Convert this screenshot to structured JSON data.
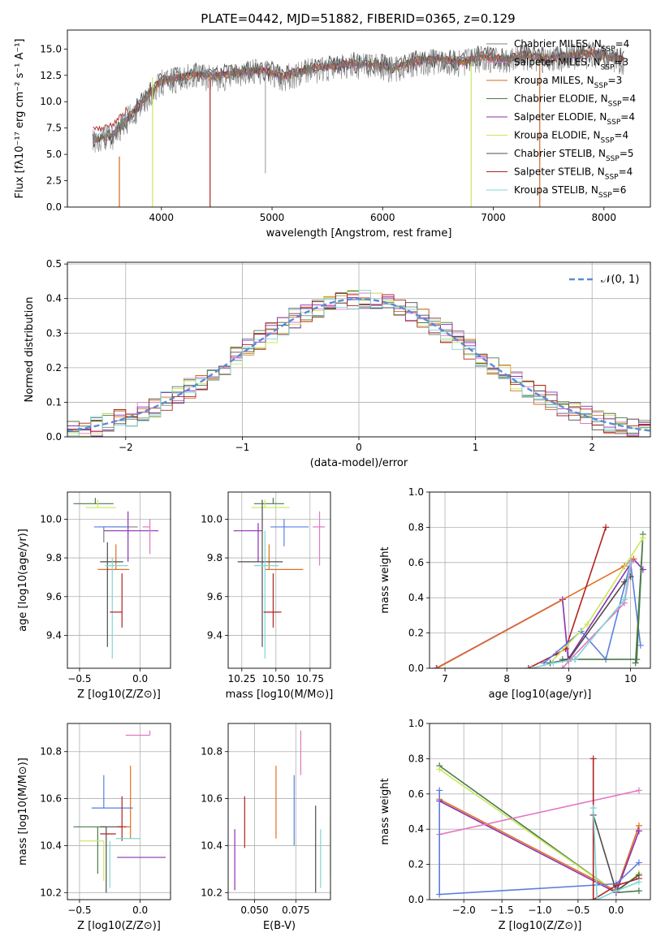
{
  "page_title": "PLATE=0442, MJD=51882, FIBERID=0365, z=0.129",
  "colors": {
    "chabrier_miles": "#808080",
    "salpeter_miles": "#e377c2",
    "kroupa_miles": "#d2691e",
    "chabrier_elodie": "#4a7a4a",
    "salpeter_elodie": "#8b2fb5",
    "kroupa_elodie": "#c8e85a",
    "chabrier_stelib": "#4d4d4d",
    "salpeter_stelib": "#b22222",
    "kroupa_stelib": "#7fd6d6",
    "normal_curve": "#5b8bd6",
    "extra_blue": "#5b7fe0",
    "extra_orange": "#e07020"
  },
  "chart_data": [
    {
      "type": "line",
      "title": "PLATE=0442, MJD=51882, FIBERID=0365, z=0.129",
      "xlabel": "wavelength [Angstrom, rest frame]",
      "ylabel": "Flux [fλ10⁻¹⁷ erg cm⁻² s⁻¹ A⁻¹]",
      "xlim": [
        3150,
        8420
      ],
      "ylim": [
        0,
        16.8
      ],
      "xticks": [
        4000,
        5000,
        6000,
        7000,
        8000
      ],
      "yticks": [
        0.0,
        2.5,
        5.0,
        7.5,
        10.0,
        12.5,
        15.0
      ],
      "legend_position": "top-right",
      "series": [
        {
          "name": "Chabrier MILES, N_SSP=4"
        },
        {
          "name": "Salpeter MILES, N_SSP=3"
        },
        {
          "name": "Kroupa MILES, N_SSP=3"
        },
        {
          "name": "Chabrier ELODIE, N_SSP=4"
        },
        {
          "name": "Salpeter ELODIE, N_SSP=4"
        },
        {
          "name": "Kroupa ELODIE, N_SSP=4"
        },
        {
          "name": "Chabrier STELIB, N_SSP=5"
        },
        {
          "name": "Salpeter STELIB, N_SSP=4"
        },
        {
          "name": "Kroupa STELIB, N_SSP=6"
        }
      ],
      "spectrum_shape": {
        "x": [
          3400,
          3550,
          3700,
          3850,
          4000,
          4150,
          4300,
          4500,
          4700,
          4900,
          5100,
          5300,
          5500,
          5700,
          5900,
          6100,
          6300,
          6500,
          6700,
          6900,
          7100,
          7300,
          7500,
          7700,
          7900,
          8100,
          8180
        ],
        "y": [
          6.5,
          6.8,
          8.5,
          10.2,
          12.0,
          12.3,
          12.6,
          12.4,
          12.8,
          13.0,
          12.4,
          13.0,
          13.3,
          13.6,
          13.6,
          13.2,
          13.8,
          14.0,
          13.8,
          14.3,
          14.0,
          14.4,
          14.1,
          14.4,
          14.6,
          14.2,
          14.0
        ]
      },
      "dropouts": [
        {
          "series": 2,
          "x": 3620,
          "from": 4.8
        },
        {
          "series": 5,
          "x": 3920,
          "from": 12.3
        },
        {
          "series": 7,
          "x": 4440,
          "from": 12.0
        },
        {
          "series": 5,
          "x": 6800,
          "from": 13.8
        },
        {
          "series": 2,
          "x": 7420,
          "from": 13.8
        }
      ]
    },
    {
      "type": "bar",
      "xlabel": "(data-model)/error",
      "ylabel": "Normed distribution",
      "xlim": [
        -2.5,
        2.5
      ],
      "ylim": [
        0,
        0.505
      ],
      "xticks": [
        -2,
        -1,
        0,
        1,
        2
      ],
      "yticks": [
        0.0,
        0.1,
        0.2,
        0.3,
        0.4,
        0.5
      ],
      "legend_position": "top-right",
      "reference_curve": {
        "name": "𝒩(0, 1)",
        "mean": 0,
        "sd": 1
      },
      "bin_width": 0.1
    },
    {
      "type": "scatter",
      "xlabel": "Z [log10(Z/Z⊙)]",
      "ylabel": "age  [log10(age/yr)]",
      "xlim": [
        -0.6,
        0.25
      ],
      "ylim": [
        9.23,
        10.14
      ],
      "xticks": [
        -0.5,
        0.0
      ],
      "yticks": [
        9.4,
        9.6,
        9.8,
        10.0
      ],
      "errorbars": [
        {
          "x": -0.37,
          "y": 10.08,
          "xerr": [
            0.18,
            0.15
          ],
          "yerr": [
            0.0,
            0.03
          ],
          "series": 3
        },
        {
          "x": -0.35,
          "y": 10.06,
          "xerr": [
            0.1,
            0.15
          ],
          "yerr": [
            0.0,
            0.04
          ],
          "series": 5
        },
        {
          "x": -0.3,
          "y": 9.96,
          "xerr": [
            0.05,
            0.28
          ],
          "yerr": [
            0.08,
            0.0
          ],
          "series": 0
        },
        {
          "x": -0.28,
          "y": 9.96,
          "xerr": [
            0.1,
            0.17
          ],
          "yerr": [
            0.0,
            0.0
          ],
          "series": 10
        },
        {
          "x": -0.1,
          "y": 9.94,
          "xerr": [
            0.2,
            0.25
          ],
          "yerr": [
            0.16,
            0.1
          ],
          "series": 4
        },
        {
          "x": 0.08,
          "y": 9.96,
          "xerr": [
            0.06,
            0.0
          ],
          "yerr": [
            0.14,
            0.04
          ],
          "series": 1
        },
        {
          "x": -0.2,
          "y": 9.74,
          "xerr": [
            0.15,
            0.11
          ],
          "yerr": [
            0.0,
            0.13
          ],
          "series": 11
        },
        {
          "x": -0.27,
          "y": 9.78,
          "xerr": [
            0.06,
            0.13
          ],
          "yerr": [
            0.44,
            0.1
          ],
          "series": 6
        },
        {
          "x": -0.23,
          "y": 9.76,
          "xerr": [
            0.06,
            0.13
          ],
          "yerr": [
            0.48,
            0.04
          ],
          "series": 8
        },
        {
          "x": -0.15,
          "y": 9.52,
          "xerr": [
            0.1,
            0.0
          ],
          "yerr": [
            0.08,
            0.2
          ],
          "series": 7
        }
      ]
    },
    {
      "type": "scatter",
      "xlabel": "mass [log10(M/M⊙)]",
      "ylabel": "",
      "xlim": [
        10.15,
        10.9
      ],
      "ylim": [
        9.23,
        10.14
      ],
      "xticks": [
        10.25,
        10.5,
        10.75
      ],
      "yticks": [
        9.4,
        9.6,
        9.8,
        10.0
      ],
      "errorbars": [
        {
          "x": 10.48,
          "y": 10.08,
          "xerr": [
            0.14,
            0.08
          ],
          "yerr": [
            0.0,
            0.03
          ],
          "series": 3
        },
        {
          "x": 10.42,
          "y": 10.06,
          "xerr": [
            0.1,
            0.18
          ],
          "yerr": [
            0.0,
            0.04
          ],
          "series": 5
        },
        {
          "x": 10.37,
          "y": 9.94,
          "xerr": [
            0.18,
            0.03
          ],
          "yerr": [
            0.16,
            0.04
          ],
          "series": 4
        },
        {
          "x": 10.56,
          "y": 9.96,
          "xerr": [
            0.1,
            0.18
          ],
          "yerr": [
            0.1,
            0.04
          ],
          "series": 10
        },
        {
          "x": 10.82,
          "y": 9.96,
          "xerr": [
            0.05,
            0.04
          ],
          "yerr": [
            0.2,
            0.08
          ],
          "series": 1
        },
        {
          "x": 10.45,
          "y": 9.74,
          "xerr": [
            0.03,
            0.25
          ],
          "yerr": [
            0.0,
            0.13
          ],
          "series": 11
        },
        {
          "x": 10.4,
          "y": 9.78,
          "xerr": [
            0.18,
            0.15
          ],
          "yerr": [
            0.44,
            0.32
          ],
          "series": 6
        },
        {
          "x": 10.42,
          "y": 9.76,
          "xerr": [
            0.08,
            0.1
          ],
          "yerr": [
            0.48,
            0.18
          ],
          "series": 8
        },
        {
          "x": 10.48,
          "y": 9.52,
          "xerr": [
            0.07,
            0.06
          ],
          "yerr": [
            0.08,
            0.2
          ],
          "series": 7
        }
      ]
    },
    {
      "type": "line",
      "xlabel": "age  [log10(age/yr)]",
      "ylabel": "mass weight",
      "xlim": [
        6.75,
        10.32
      ],
      "ylim": [
        0,
        1
      ],
      "xticks": [
        7,
        8,
        9,
        10
      ],
      "yticks": [
        0.0,
        0.2,
        0.4,
        0.6,
        0.8,
        1.0
      ],
      "series": [
        {
          "series": 4,
          "points": [
            [
              6.86,
              0.0
            ],
            [
              8.9,
              0.39
            ],
            [
              8.99,
              0.05
            ],
            [
              10.05,
              0.62
            ],
            [
              10.2,
              0.56
            ]
          ]
        },
        {
          "series": 11,
          "points": [
            [
              6.87,
              0.0
            ],
            [
              9.9,
              0.58
            ],
            [
              10.05,
              0.62
            ]
          ]
        },
        {
          "series": 7,
          "points": [
            [
              8.35,
              0.0
            ],
            [
              8.8,
              0.08
            ],
            [
              8.95,
              0.11
            ],
            [
              9.6,
              0.8
            ]
          ]
        },
        {
          "series": 10,
          "points": [
            [
              8.6,
              0.03
            ],
            [
              9.2,
              0.21
            ],
            [
              9.6,
              0.05
            ],
            [
              10.0,
              0.6
            ],
            [
              10.16,
              0.13
            ]
          ]
        },
        {
          "series": 3,
          "points": [
            [
              8.9,
              0.05
            ],
            [
              9.1,
              0.05
            ],
            [
              10.1,
              0.05
            ],
            [
              10.2,
              0.76
            ],
            [
              10.08,
              0.03
            ]
          ]
        },
        {
          "series": 5,
          "points": [
            [
              8.7,
              0.03
            ],
            [
              9.3,
              0.25
            ],
            [
              10.2,
              0.74
            ]
          ]
        },
        {
          "series": 6,
          "points": [
            [
              8.7,
              0.03
            ],
            [
              9.0,
              0.05
            ],
            [
              9.9,
              0.49
            ],
            [
              10.0,
              0.52
            ]
          ]
        },
        {
          "series": 1,
          "points": [
            [
              8.9,
              0.0
            ],
            [
              9.0,
              0.04
            ],
            [
              9.9,
              0.37
            ],
            [
              10.02,
              0.61
            ]
          ]
        },
        {
          "series": 8,
          "points": [
            [
              8.4,
              0.0
            ],
            [
              8.75,
              0.03
            ],
            [
              9.1,
              0.05
            ],
            [
              9.9,
              0.39
            ],
            [
              10.0,
              0.6
            ]
          ]
        }
      ]
    },
    {
      "type": "scatter",
      "xlabel": "Z [log10(Z/Z⊙)]",
      "ylabel": "mass [log10(M/M⊙)]",
      "xlim": [
        -0.6,
        0.25
      ],
      "ylim": [
        10.17,
        10.92
      ],
      "xticks": [
        -0.5,
        0.0
      ],
      "yticks": [
        10.2,
        10.4,
        10.6,
        10.8
      ],
      "errorbars": [
        {
          "x": 0.08,
          "y": 10.87,
          "xerr": [
            0.2,
            0.0
          ],
          "yerr": [
            0.0,
            0.02
          ],
          "series": 1
        },
        {
          "x": -0.08,
          "y": 10.48,
          "xerr": [
            0.03,
            0.0
          ],
          "yerr": [
            0.05,
            0.26
          ],
          "series": 11
        },
        {
          "x": -0.3,
          "y": 10.56,
          "xerr": [
            0.1,
            0.24
          ],
          "yerr": [
            0.0,
            0.14
          ],
          "series": 10
        },
        {
          "x": -0.35,
          "y": 10.48,
          "xerr": [
            0.2,
            0.07
          ],
          "yerr": [
            0.2,
            0.0
          ],
          "series": 3
        },
        {
          "x": -0.28,
          "y": 10.48,
          "xerr": [
            0.05,
            0.13
          ],
          "yerr": [
            0.28,
            0.0
          ],
          "series": 6
        },
        {
          "x": -0.15,
          "y": 10.48,
          "xerr": [
            0.04,
            0.04
          ],
          "yerr": [
            0.06,
            0.13
          ],
          "series": 7
        },
        {
          "x": -0.2,
          "y": 10.45,
          "xerr": [
            0.13,
            0.0
          ],
          "yerr": [
            0.0,
            0.0
          ],
          "series": 7
        },
        {
          "x": -0.3,
          "y": 10.42,
          "xerr": [
            0.2,
            0.0
          ],
          "yerr": [
            0.17,
            0.0
          ],
          "series": 5
        },
        {
          "x": -0.2,
          "y": 10.43,
          "xerr": [
            0.0,
            0.2
          ],
          "yerr": [
            0.0,
            0.0
          ],
          "series": 8
        },
        {
          "x": -0.12,
          "y": 10.35,
          "xerr": [
            0.07,
            0.33
          ],
          "yerr": [
            0.0,
            0.0
          ],
          "series": 4
        },
        {
          "x": -0.25,
          "y": 10.42,
          "xerr": [
            0.0,
            0.0
          ],
          "yerr": [
            0.2,
            0.0
          ],
          "series": 8
        }
      ]
    },
    {
      "type": "scatter",
      "xlabel": "E(B-V)",
      "ylabel": "",
      "xlim": [
        0.034,
        0.096
      ],
      "ylim": [
        10.17,
        10.92
      ],
      "xticks": [
        0.05,
        0.075
      ],
      "yticks": [
        10.2,
        10.4,
        10.6,
        10.8
      ],
      "errorbars": [
        {
          "x": 0.038,
          "y": 10.35,
          "yerr": [
            0.14,
            0.12
          ],
          "series": 4
        },
        {
          "x": 0.044,
          "y": 10.49,
          "yerr": [
            0.1,
            0.12
          ],
          "series": 7
        },
        {
          "x": 0.063,
          "y": 10.58,
          "yerr": [
            0.15,
            0.16
          ],
          "series": 11
        },
        {
          "x": 0.074,
          "y": 10.55,
          "yerr": [
            0.15,
            0.15
          ],
          "series": 10
        },
        {
          "x": 0.078,
          "y": 10.8,
          "yerr": [
            0.1,
            0.09
          ],
          "series": 1
        },
        {
          "x": 0.087,
          "y": 10.37,
          "yerr": [
            0.17,
            0.2
          ],
          "series": 6
        },
        {
          "x": 0.09,
          "y": 10.35,
          "yerr": [
            0.13,
            0.12
          ],
          "series": 8
        },
        {
          "x": 0.096,
          "y": 10.37,
          "yerr": [
            0.1,
            0.15
          ],
          "series": 5
        }
      ]
    },
    {
      "type": "line",
      "xlabel": "Z [log10(Z/Z⊙)]",
      "ylabel": "mass weight",
      "xlim": [
        -2.45,
        0.45
      ],
      "ylim": [
        0,
        1
      ],
      "xticks": [
        -2.0,
        -1.5,
        -1.0,
        -0.5,
        0.0
      ],
      "yticks": [
        0.0,
        0.2,
        0.4,
        0.6,
        0.8,
        1.0
      ],
      "series": [
        {
          "series": 3,
          "points": [
            [
              -2.32,
              0.76
            ],
            [
              0.0,
              0.04
            ],
            [
              0.3,
              0.05
            ]
          ]
        },
        {
          "series": 5,
          "points": [
            [
              -2.32,
              0.74
            ],
            [
              0.0,
              0.04
            ],
            [
              0.3,
              0.15
            ]
          ]
        },
        {
          "series": 11,
          "points": [
            [
              -2.32,
              0.57
            ],
            [
              0.0,
              0.05
            ],
            [
              0.3,
              0.42
            ]
          ]
        },
        {
          "series": 4,
          "points": [
            [
              -2.32,
              0.56
            ],
            [
              0.0,
              0.04
            ],
            [
              0.3,
              0.39
            ]
          ]
        },
        {
          "series": 1,
          "points": [
            [
              -2.32,
              0.37
            ],
            [
              0.3,
              0.62
            ]
          ]
        },
        {
          "series": 10,
          "points": [
            [
              -2.32,
              0.62
            ],
            [
              -2.32,
              0.03
            ],
            [
              0.0,
              0.09
            ],
            [
              0.3,
              0.21
            ]
          ]
        },
        {
          "series": 7,
          "points": [
            [
              -0.3,
              0.8
            ],
            [
              -0.3,
              0.0
            ],
            [
              0.0,
              0.08
            ],
            [
              0.3,
              0.12
            ]
          ]
        },
        {
          "series": 6,
          "points": [
            [
              -0.3,
              0.48
            ],
            [
              0.0,
              0.05
            ],
            [
              0.3,
              0.14
            ]
          ]
        },
        {
          "series": 8,
          "points": [
            [
              -0.3,
              0.52
            ],
            [
              -0.25,
              0.0
            ],
            [
              0.0,
              0.05
            ],
            [
              0.3,
              0.1
            ]
          ]
        }
      ]
    }
  ]
}
